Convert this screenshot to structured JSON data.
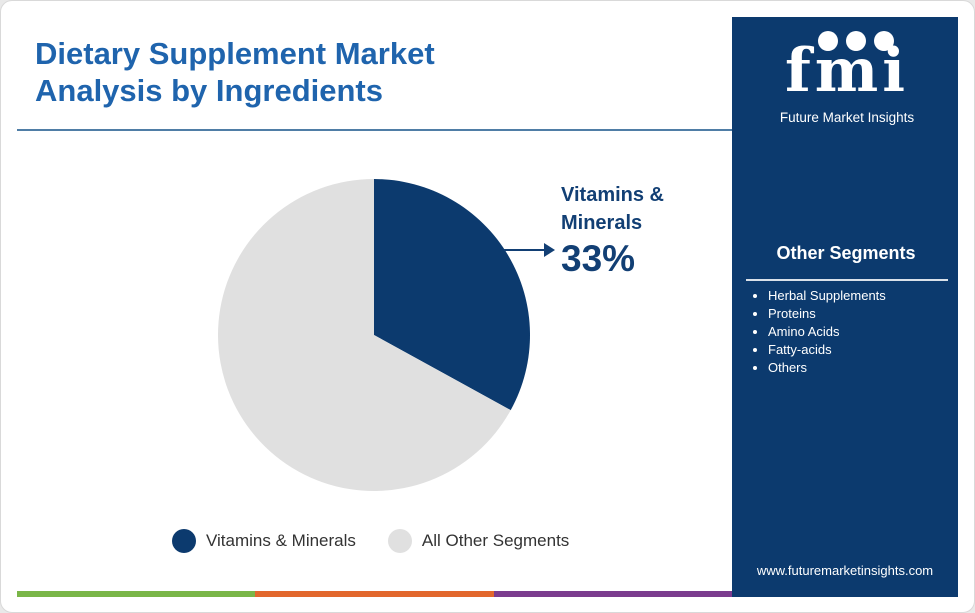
{
  "title_lines": [
    "Dietary Supplement Market",
    "Analysis by Ingredients"
  ],
  "callout": {
    "category_lines": [
      "Vitamins &",
      "Minerals"
    ],
    "percent": "33%"
  },
  "chart_data": {
    "type": "pie",
    "title": "Dietary Supplement Market Analysis by Ingredients",
    "slices": [
      {
        "label": "Vitamins & Minerals",
        "value": 33,
        "color": "#0c3a6e"
      },
      {
        "label": "All Other Segments",
        "value": 67,
        "color": "#e0e0e0"
      }
    ],
    "legend_position": "bottom"
  },
  "sidebar": {
    "brand": "fmi",
    "brand_subtitle": "Future Market Insights",
    "other_segments_title": "Other Segments",
    "other_segments": [
      "Herbal Supplements",
      "Proteins",
      "Amino Acids",
      "Fatty-acids",
      "Others"
    ],
    "url": "www.futuremarketinsights.com"
  },
  "colors": {
    "title": "#1f64ad",
    "sidebar_bg": "#0c3a6e",
    "bottom_bar": [
      "#7ab648",
      "#e2672c",
      "#7b3c8e"
    ]
  }
}
